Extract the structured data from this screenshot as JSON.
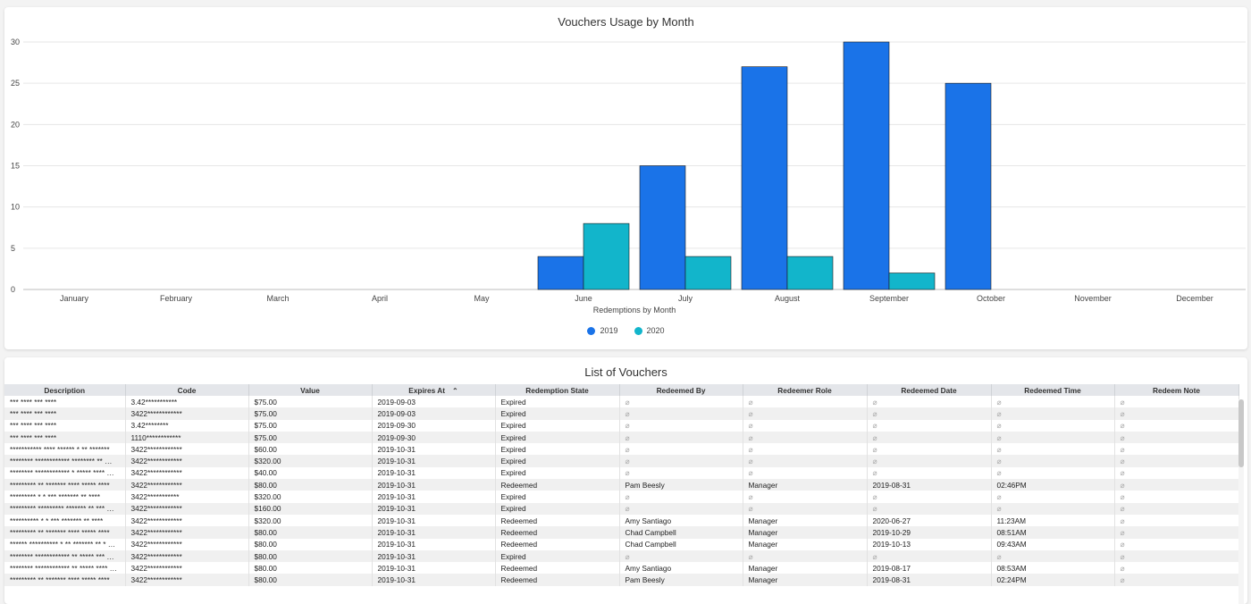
{
  "chart": {
    "title": "Vouchers Usage by Month",
    "xlabel": "Redemptions by Month",
    "legend": [
      "2019",
      "2020"
    ]
  },
  "chart_data": {
    "type": "bar",
    "title": "Vouchers Usage by Month",
    "xlabel": "Redemptions by Month",
    "ylabel": "",
    "categories": [
      "January",
      "February",
      "March",
      "April",
      "May",
      "June",
      "July",
      "August",
      "September",
      "October",
      "November",
      "December"
    ],
    "series": [
      {
        "name": "2019",
        "color": "#1a73e8",
        "values": [
          0,
          0,
          0,
          0,
          0,
          4,
          15,
          27,
          30,
          25,
          0,
          0
        ]
      },
      {
        "name": "2020",
        "color": "#12b5cb",
        "values": [
          0,
          0,
          0,
          0,
          0,
          8,
          4,
          4,
          2,
          0,
          0,
          0
        ]
      }
    ],
    "yticks": [
      0,
      5,
      10,
      15,
      20,
      25,
      30
    ],
    "ylim": [
      0,
      30
    ],
    "grid": true,
    "legend_position": "bottom"
  },
  "table": {
    "title": "List of Vouchers",
    "columns": [
      "Description",
      "Code",
      "Value",
      "Expires At",
      "Redemption State",
      "Redeemed By",
      "Redeemer Role",
      "Redeemed Date",
      "Redeemed Time",
      "Redeem Note"
    ],
    "empty_symbol": "⌀",
    "rows": [
      [
        "*** **** *** ****",
        "3.42***********",
        "$75.00",
        "2019-09-03",
        "Expired",
        "",
        "",
        "",
        "",
        ""
      ],
      [
        "*** **** *** ****",
        "3422************",
        "$75.00",
        "2019-09-03",
        "Expired",
        "",
        "",
        "",
        "",
        ""
      ],
      [
        "*** **** *** ****",
        "3.42********",
        "$75.00",
        "2019-09-30",
        "Expired",
        "",
        "",
        "",
        "",
        ""
      ],
      [
        "*** **** *** ****",
        "1110************",
        "$75.00",
        "2019-09-30",
        "Expired",
        "",
        "",
        "",
        "",
        ""
      ],
      [
        "*********** **** ****** * ** *******",
        "3422************",
        "$60.00",
        "2019-10-31",
        "Expired",
        "",
        "",
        "",
        "",
        ""
      ],
      [
        "******** ************ ******** ** …",
        "3422************",
        "$320.00",
        "2019-10-31",
        "Expired",
        "",
        "",
        "",
        "",
        ""
      ],
      [
        "******** ************ * ***** **** …",
        "3422************",
        "$40.00",
        "2019-10-31",
        "Expired",
        "",
        "",
        "",
        "",
        ""
      ],
      [
        "********* ** ******* **** ***** ****",
        "3422************",
        "$80.00",
        "2019-10-31",
        "Redeemed",
        "Pam Beesly",
        "Manager",
        "2019-08-31",
        "02:46PM",
        ""
      ],
      [
        "********* * * *** ******* ** ****",
        "3422***********",
        "$320.00",
        "2019-10-31",
        "Expired",
        "",
        "",
        "",
        "",
        ""
      ],
      [
        "********* ********* ******* ** *** …",
        "3422************",
        "$160.00",
        "2019-10-31",
        "Expired",
        "",
        "",
        "",
        "",
        ""
      ],
      [
        "********** * * *** ******* ** ****",
        "3422************",
        "$320.00",
        "2019-10-31",
        "Redeemed",
        "Amy Santiago",
        "Manager",
        "2020-06-27",
        "11:23AM",
        ""
      ],
      [
        "********* ** ******* **** ***** ****",
        "3422************",
        "$80.00",
        "2019-10-31",
        "Redeemed",
        "Chad Campbell",
        "Manager",
        "2019-10-29",
        "08:51AM",
        ""
      ],
      [
        "****** ********** * ** ******* ** * …",
        "3422************",
        "$80.00",
        "2019-10-31",
        "Redeemed",
        "Chad Campbell",
        "Manager",
        "2019-10-13",
        "09:43AM",
        ""
      ],
      [
        "******** ************ ** ***** *** …",
        "3422************",
        "$80.00",
        "2019-10-31",
        "Expired",
        "",
        "",
        "",
        "",
        ""
      ],
      [
        "******** ************ ** ***** **** …",
        "3422************",
        "$80.00",
        "2019-10-31",
        "Redeemed",
        "Amy Santiago",
        "Manager",
        "2019-08-17",
        "08:53AM",
        ""
      ],
      [
        "********* ** ******* **** ***** ****",
        "3422************",
        "$80.00",
        "2019-10-31",
        "Redeemed",
        "Pam Beesly",
        "Manager",
        "2019-08-31",
        "02:24PM",
        ""
      ]
    ]
  },
  "icons": {
    "sort": "chevron-up-icon"
  }
}
